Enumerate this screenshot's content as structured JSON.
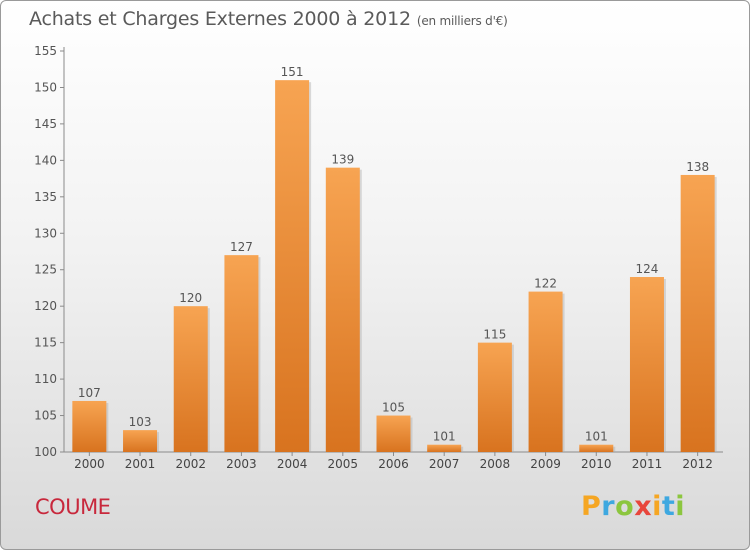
{
  "header": {
    "title": "Achats et Charges Externes 2000 à 2012",
    "subtitle": "(en milliers d'€)"
  },
  "footer": {
    "commune": "COUME",
    "logo_letters": [
      "P",
      "r",
      "o",
      "x",
      "i",
      "t",
      "i"
    ],
    "logo_colors": [
      "#f5a623",
      "#3ea8e0",
      "#8cc63f",
      "#e8463c",
      "#f5a623",
      "#3ea8e0",
      "#8cc63f"
    ]
  },
  "chart_data": {
    "type": "bar",
    "title": "Achats et Charges Externes 2000 à 2012",
    "subtitle": "(en milliers d'€)",
    "categories": [
      "2000",
      "2001",
      "2002",
      "2003",
      "2004",
      "2005",
      "2006",
      "2007",
      "2008",
      "2009",
      "2010",
      "2011",
      "2012"
    ],
    "values": [
      107,
      103,
      120,
      127,
      151,
      139,
      105,
      101,
      115,
      122,
      101,
      124,
      138
    ],
    "ylim": [
      100,
      155
    ],
    "yticks": [
      100,
      105,
      110,
      115,
      120,
      125,
      130,
      135,
      140,
      145,
      150,
      155
    ],
    "grid": false,
    "bar_color_top": "#f7a452",
    "bar_color_bottom": "#d8731f"
  }
}
